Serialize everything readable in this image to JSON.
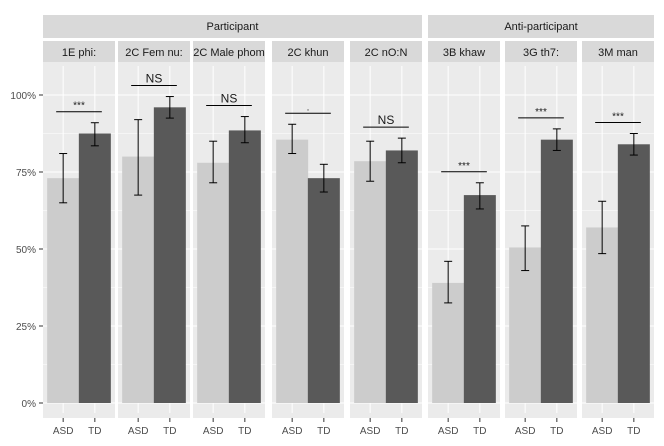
{
  "chart_data": {
    "type": "bar",
    "groups": [
      {
        "label": "Participant",
        "facets": [
          "1E phi:",
          "2C Fem nu:",
          "2C Male phom",
          "2C khun",
          "2C nO:N"
        ]
      },
      {
        "label": "Anti-participant",
        "facets": [
          "3B khaw",
          "3G th7:",
          "3M man"
        ]
      }
    ],
    "categories": [
      "ASD",
      "TD"
    ],
    "ylim": [
      0,
      1
    ],
    "yticks": [
      "0%",
      "25%",
      "50%",
      "75%",
      "100%"
    ],
    "ytick_values": [
      0,
      0.25,
      0.5,
      0.75,
      1.0
    ],
    "grid": true,
    "colors": {
      "ASD": "#cccccc",
      "TD": "#595959",
      "panel": "#ebebeb",
      "strip": "#d9d9d9"
    },
    "facets": [
      {
        "label": "1E phi:",
        "values": [
          0.73,
          0.875
        ],
        "err_low": [
          0.65,
          0.835
        ],
        "err_high": [
          0.81,
          0.91
        ],
        "sig": "***"
      },
      {
        "label": "2C Fem nu:",
        "values": [
          0.8,
          0.96
        ],
        "err_low": [
          0.675,
          0.925
        ],
        "err_high": [
          0.92,
          0.995
        ],
        "sig": "NS"
      },
      {
        "label": "2C Male phom",
        "values": [
          0.78,
          0.885
        ],
        "err_low": [
          0.715,
          0.845
        ],
        "err_high": [
          0.85,
          0.93
        ],
        "sig": "NS"
      },
      {
        "label": "2C khun",
        "values": [
          0.855,
          0.73
        ],
        "err_low": [
          0.81,
          0.685
        ],
        "err_high": [
          0.905,
          0.775
        ],
        "sig": "."
      },
      {
        "label": "2C nO:N",
        "values": [
          0.785,
          0.82
        ],
        "err_low": [
          0.72,
          0.78
        ],
        "err_high": [
          0.85,
          0.86
        ],
        "sig": "NS"
      },
      {
        "label": "3B khaw",
        "values": [
          0.39,
          0.675
        ],
        "err_low": [
          0.325,
          0.63
        ],
        "err_high": [
          0.46,
          0.715
        ],
        "sig": "***"
      },
      {
        "label": "3G th7:",
        "values": [
          0.505,
          0.855
        ],
        "err_low": [
          0.43,
          0.82
        ],
        "err_high": [
          0.575,
          0.89
        ],
        "sig": "***"
      },
      {
        "label": "3M man",
        "values": [
          0.57,
          0.84
        ],
        "err_low": [
          0.485,
          0.805
        ],
        "err_high": [
          0.655,
          0.875
        ],
        "sig": "***"
      }
    ]
  }
}
